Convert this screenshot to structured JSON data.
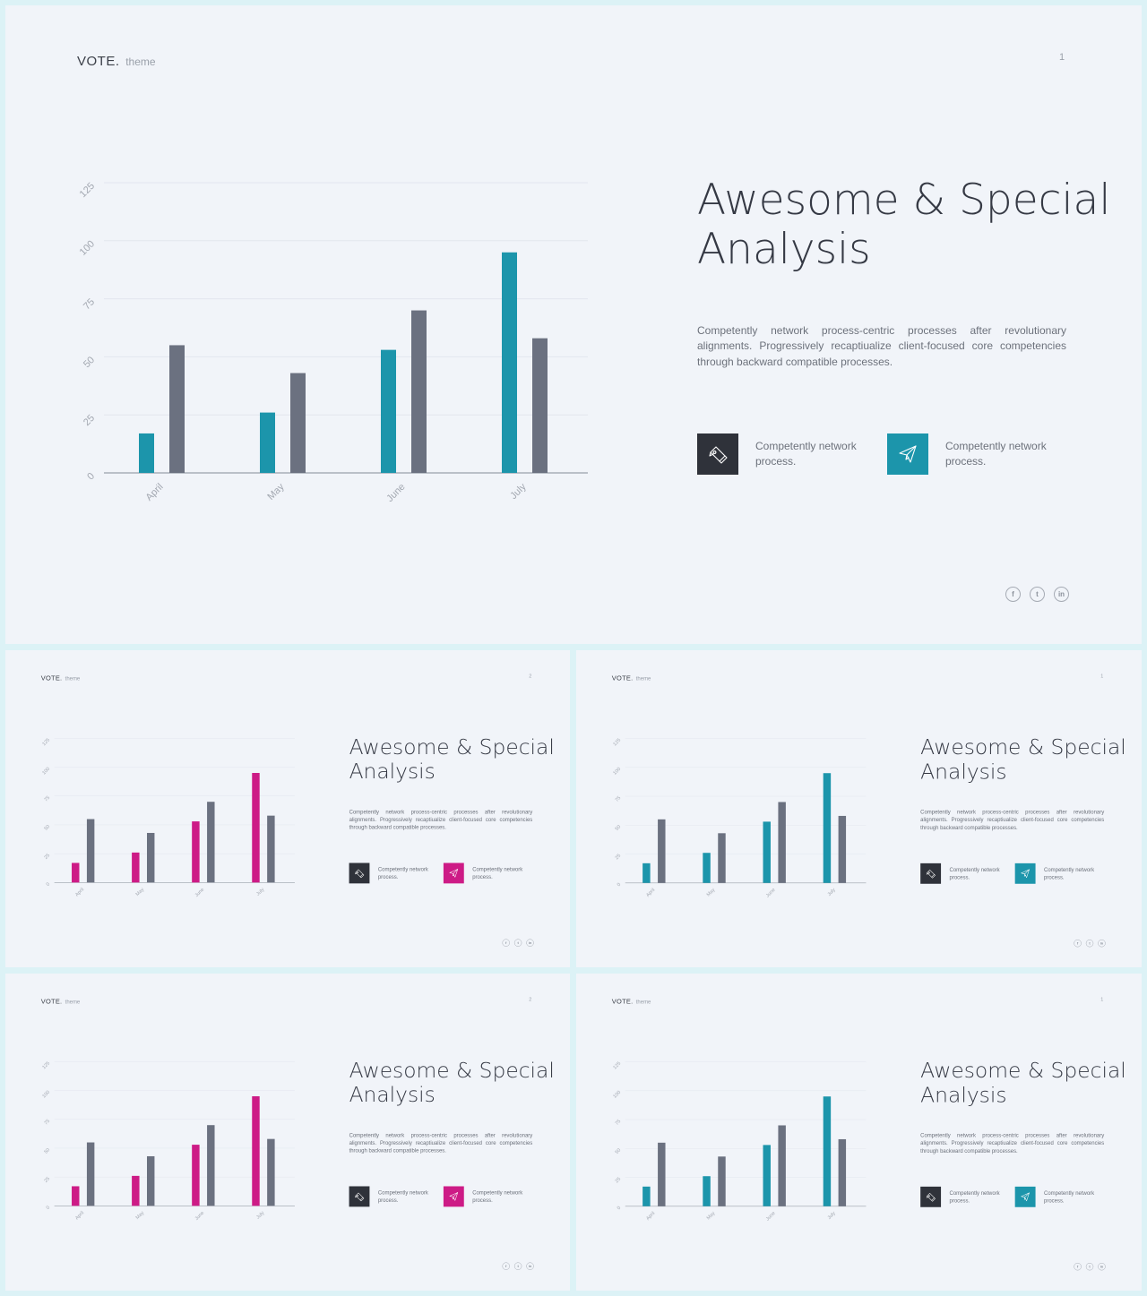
{
  "slides": [
    {
      "brand": "VOTE.",
      "brand_sub": "theme",
      "page": "1",
      "accent": "#1c95ab"
    },
    {
      "brand": "VOTE.",
      "brand_sub": "theme",
      "page": "2",
      "accent": "#cd1b86"
    },
    {
      "brand": "VOTE.",
      "brand_sub": "theme",
      "page": "1",
      "accent": "#1c95ab"
    },
    {
      "brand": "VOTE.",
      "brand_sub": "theme",
      "page": "2",
      "accent": "#cd1b86"
    },
    {
      "brand": "VOTE.",
      "brand_sub": "theme",
      "page": "1",
      "accent": "#1c95ab"
    }
  ],
  "title_line1": "Awesome & Special",
  "title_line2": "Analysis",
  "body": "Competently network process-centric processes after revolutionary alignments. Progressively recaptiualize client-focused core competencies through backward compatible processes.",
  "features": [
    {
      "icon": "pen-icon",
      "text": "Competently network process."
    },
    {
      "icon": "paper-plane-icon",
      "text": "Competently network process."
    }
  ],
  "social_icons": [
    "facebook-icon",
    "twitter-icon",
    "linkedin-icon"
  ],
  "colors": {
    "accent_teal": "#1c95ab",
    "accent_magenta": "#cd1b86",
    "secondary_gray": "#6b7180",
    "dark_tile": "#2f323a"
  },
  "chart_data": {
    "type": "bar",
    "categories": [
      "April",
      "May",
      "June",
      "July"
    ],
    "series": [
      {
        "values": [
          17,
          26,
          53,
          95
        ]
      },
      {
        "values": [
          55,
          43,
          70,
          58
        ]
      }
    ],
    "yticks": [
      0,
      25,
      50,
      75,
      100,
      125
    ],
    "ylim": [
      0,
      125
    ],
    "grid": true
  }
}
